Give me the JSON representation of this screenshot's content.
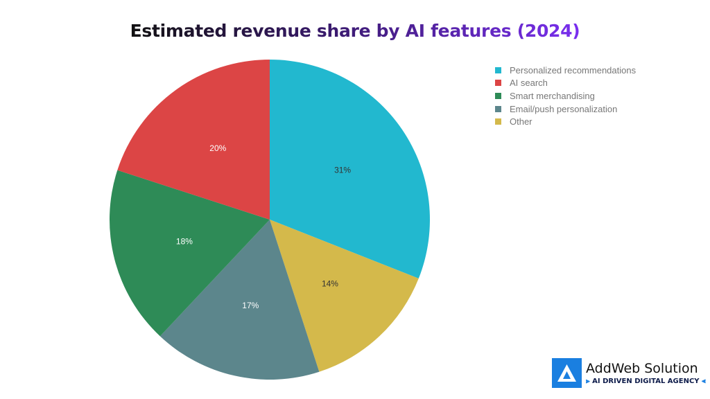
{
  "chart_data": {
    "type": "pie",
    "title": "Estimated revenue share by AI features (2024)",
    "slices": [
      {
        "label": "Personalized recommendations",
        "value": 31,
        "data_label": "31%",
        "color": "#22b8cf"
      },
      {
        "label": "Other",
        "value": 14,
        "data_label": "14%",
        "color": "#d4b94b"
      },
      {
        "label": "Email/push personalization",
        "value": 17,
        "data_label": "17%",
        "color": "#5c868c"
      },
      {
        "label": "Smart merchandising",
        "value": 18,
        "data_label": "18%",
        "color": "#2e8b57"
      },
      {
        "label": "AI search",
        "value": 20,
        "data_label": "20%",
        "color": "#dc4545"
      }
    ],
    "start": "top, clockwise",
    "legend_placement": "top-right",
    "legend": [
      {
        "label": "Personalized recommendations",
        "color": "#22b8cf"
      },
      {
        "label": "AI search",
        "color": "#dc4545"
      },
      {
        "label": "Smart merchandising",
        "color": "#2e8b57"
      },
      {
        "label": "Email/push personalization",
        "color": "#5c868c"
      },
      {
        "label": "Other",
        "color": "#d4b94b"
      }
    ]
  },
  "logo": {
    "name": "AddWeb Solution",
    "tagline": "AI DRIVEN DIGITAL AGENCY",
    "color": "#1a7fe0"
  }
}
